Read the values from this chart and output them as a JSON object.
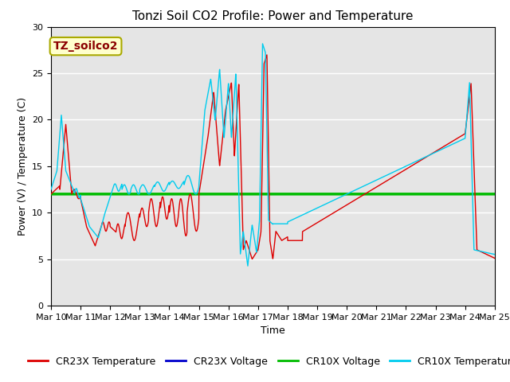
{
  "title": "Tonzi Soil CO2 Profile: Power and Temperature",
  "xlabel": "Time",
  "ylabel": "Power (V) / Temperature (C)",
  "ylim": [
    0,
    30
  ],
  "xlim": [
    0,
    15
  ],
  "xtick_labels": [
    "Mar 10",
    "Mar 11",
    "Mar 12",
    "Mar 13",
    "Mar 14",
    "Mar 15",
    "Mar 16",
    "Mar 17",
    "Mar 18",
    "Mar 19",
    "Mar 20",
    "Mar 21",
    "Mar 22",
    "Mar 23",
    "Mar 24",
    "Mar 25"
  ],
  "background_color": "#e5e5e5",
  "annotation_text": "TZ_soilco2",
  "annotation_color": "#8b0000",
  "annotation_bg": "#ffffcc",
  "annotation_edge": "#aaaa00",
  "cr23x_temp_color": "#dd0000",
  "cr23x_volt_color": "#0000cc",
  "cr10x_volt_color": "#00bb00",
  "cr10x_temp_color": "#00ccee",
  "volt_value": 12.0,
  "title_fontsize": 11,
  "label_fontsize": 9,
  "tick_fontsize": 8,
  "legend_fontsize": 9
}
